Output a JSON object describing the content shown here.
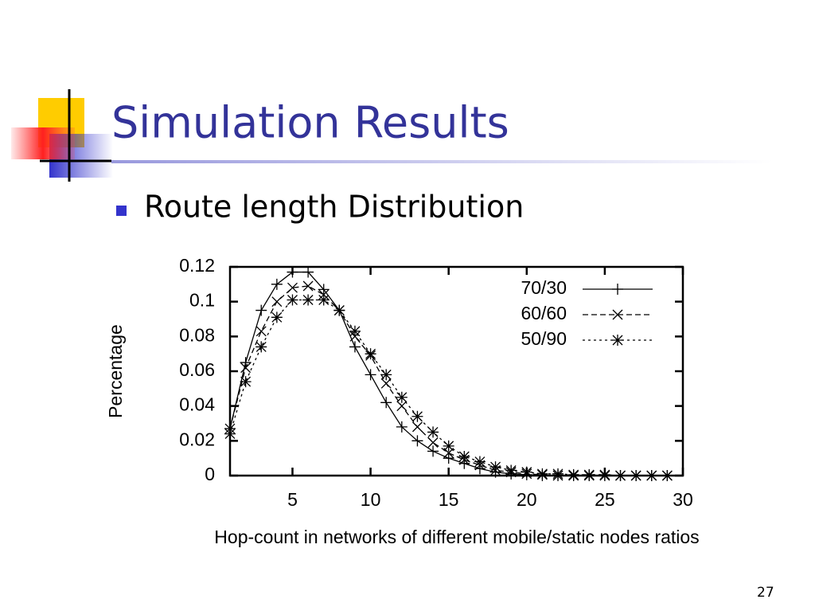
{
  "slide": {
    "title": "Simulation Results",
    "bullet": "Route length Distribution",
    "page_number": "27"
  },
  "chart_data": {
    "type": "line",
    "xlabel": "Hop-count in networks of different mobile/static nodes ratios",
    "ylabel": "Percentage",
    "x": [
      1,
      2,
      3,
      4,
      5,
      6,
      7,
      8,
      9,
      10,
      11,
      12,
      13,
      14,
      15,
      16,
      17,
      18,
      19,
      20,
      21,
      22,
      23,
      24,
      25,
      26,
      27,
      28,
      29
    ],
    "series": [
      {
        "name": "70/30",
        "color": "#000000",
        "dash": "solid",
        "marker": "plus",
        "values": [
          0.027,
          0.065,
          0.095,
          0.11,
          0.117,
          0.117,
          0.107,
          0.095,
          0.074,
          0.058,
          0.042,
          0.028,
          0.02,
          0.014,
          0.01,
          0.007,
          0.004,
          0.002,
          0.001,
          0.0005,
          0,
          0,
          0,
          0,
          0,
          0,
          0,
          0,
          0
        ]
      },
      {
        "name": "60/60",
        "color": "#000000",
        "dash": "dashed",
        "marker": "cross",
        "values": [
          0.027,
          0.062,
          0.083,
          0.1,
          0.108,
          0.109,
          0.104,
          0.095,
          0.08,
          0.069,
          0.053,
          0.04,
          0.028,
          0.019,
          0.013,
          0.009,
          0.006,
          0.003,
          0.002,
          0.001,
          0.0005,
          0,
          0,
          0,
          0,
          0,
          0,
          0,
          0
        ]
      },
      {
        "name": "50/90",
        "color": "#000000",
        "dash": "dotted",
        "marker": "star",
        "values": [
          0.024,
          0.054,
          0.074,
          0.091,
          0.101,
          0.101,
          0.101,
          0.095,
          0.083,
          0.07,
          0.058,
          0.045,
          0.034,
          0.025,
          0.017,
          0.011,
          0.008,
          0.005,
          0.003,
          0.002,
          0.001,
          0.001,
          0.0005,
          0.0005,
          0.0005,
          0,
          0,
          0,
          0
        ]
      }
    ],
    "xlim": [
      1,
      30
    ],
    "ylim": [
      0,
      0.12
    ],
    "xticks": [
      5,
      10,
      15,
      20,
      25,
      30
    ],
    "yticks": [
      0,
      0.02,
      0.04,
      0.06,
      0.08,
      0.1,
      0.12
    ],
    "legend": "top-right"
  }
}
